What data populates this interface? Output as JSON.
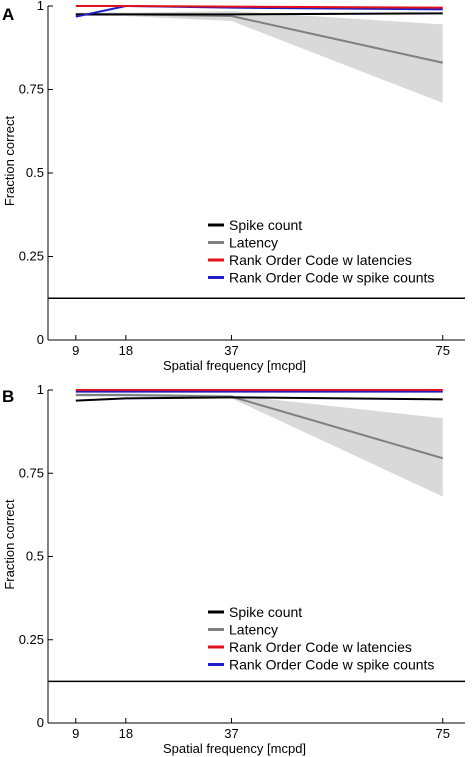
{
  "chart_data": [
    {
      "type": "line",
      "panel_label": "A",
      "xlabel": "Spatial frequency [mcpd]",
      "ylabel": "Fraction correct",
      "x": [
        9,
        18,
        37,
        75
      ],
      "xticks": [
        9,
        18,
        37,
        75
      ],
      "yticks": [
        0,
        0.25,
        0.5,
        0.75,
        1
      ],
      "ytick_labels": [
        "0",
        "0.25",
        "0.5",
        "0.75",
        "1"
      ],
      "xlim": [
        4,
        79
      ],
      "ylim": [
        0,
        1
      ],
      "grid": false,
      "legend_placement": "lower-right",
      "chance_level": 0.125,
      "series": [
        {
          "name": "Spike count",
          "color": "#000000",
          "values": [
            0.975,
            0.975,
            0.975,
            0.978
          ]
        },
        {
          "name": "Latency",
          "color": "#808080",
          "values": [
            0.975,
            0.975,
            0.97,
            0.83
          ],
          "band_low": [
            0.97,
            0.97,
            0.955,
            0.71
          ],
          "band_high": [
            0.98,
            0.98,
            0.985,
            0.945
          ]
        },
        {
          "name": "Rank Order Code w latencies",
          "color": "#e0101c",
          "values": [
            1.0,
            1.0,
            0.998,
            0.995
          ]
        },
        {
          "name": "Rank Order Code w spike counts",
          "color": "#1e1ec8",
          "values": [
            0.968,
            1.0,
            0.995,
            0.99
          ]
        }
      ]
    },
    {
      "type": "line",
      "panel_label": "B",
      "xlabel": "Spatial frequency [mcpd]",
      "ylabel": "Fraction correct",
      "x": [
        9,
        18,
        37,
        75
      ],
      "xticks": [
        9,
        18,
        37,
        75
      ],
      "yticks": [
        0,
        0.25,
        0.5,
        0.75,
        1
      ],
      "ytick_labels": [
        "0",
        "0.25",
        "0.5",
        "0.75",
        "1"
      ],
      "xlim": [
        4,
        79
      ],
      "ylim": [
        0,
        1
      ],
      "grid": false,
      "legend_placement": "lower-right",
      "chance_level": 0.125,
      "series": [
        {
          "name": "Spike count",
          "color": "#000000",
          "values": [
            0.968,
            0.975,
            0.978,
            0.972
          ]
        },
        {
          "name": "Latency",
          "color": "#808080",
          "values": [
            0.985,
            0.985,
            0.98,
            0.795
          ],
          "band_low": [
            0.98,
            0.98,
            0.975,
            0.68
          ],
          "band_high": [
            0.99,
            0.99,
            0.985,
            0.915
          ]
        },
        {
          "name": "Rank Order Code w latencies",
          "color": "#e0101c",
          "values": [
            1.0,
            1.0,
            1.0,
            1.0
          ]
        },
        {
          "name": "Rank Order Code w spike counts",
          "color": "#1e1ec8",
          "values": [
            0.995,
            0.995,
            0.995,
            0.995
          ]
        }
      ]
    }
  ]
}
